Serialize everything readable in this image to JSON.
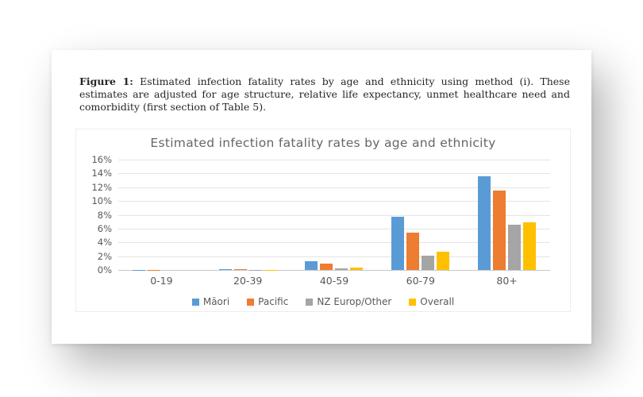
{
  "caption": {
    "label": "Figure 1:",
    "text": "Estimated infection fatality rates by age and ethnicity using method (i). These estimates are adjusted for age structure, relative life expectancy, unmet healthcare need and comorbidity (first section of Table 5)."
  },
  "chart_data": {
    "type": "bar",
    "title": "Estimated infection fatality rates by age and ethnicity",
    "xlabel": "",
    "ylabel": "",
    "categories": [
      "0-19",
      "20-39",
      "40-59",
      "60-79",
      "80+"
    ],
    "series": [
      {
        "name": "Māori",
        "color": "#5B9BD5",
        "values": [
          0.01,
          0.1,
          1.25,
          7.7,
          13.6
        ]
      },
      {
        "name": "Pacific",
        "color": "#ED7D31",
        "values": [
          0.01,
          0.1,
          0.95,
          5.4,
          11.5
        ]
      },
      {
        "name": "NZ Europ/Other",
        "color": "#A5A5A5",
        "values": [
          0.0,
          0.02,
          0.2,
          2.1,
          6.6
        ]
      },
      {
        "name": "Overall",
        "color": "#FFC000",
        "values": [
          0.0,
          0.03,
          0.35,
          2.6,
          6.9
        ]
      }
    ],
    "ylim": [
      0,
      16
    ],
    "ytick_labels": [
      "0%",
      "2%",
      "4%",
      "6%",
      "8%",
      "10%",
      "12%",
      "14%",
      "16%"
    ],
    "grid": true,
    "legend_position": "bottom",
    "colors": {
      "chart_text": "#595959",
      "title_text": "#666666",
      "gridline": "#e4e4e4",
      "axis_line": "#c9c9c9"
    }
  }
}
